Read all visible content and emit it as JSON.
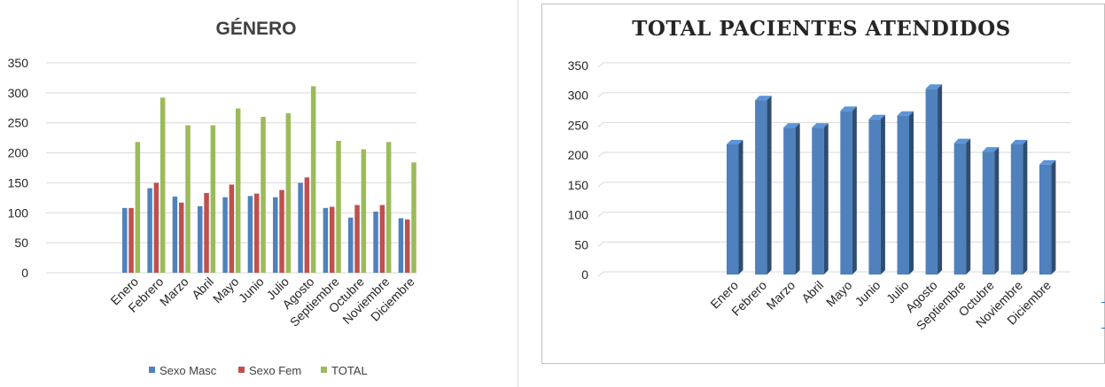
{
  "chart_data": [
    {
      "type": "bar",
      "title": "GÉNERO",
      "categories": [
        "Enero",
        "Febrero",
        "Marzo",
        "Abril",
        "Mayo",
        "Junio",
        "Julio",
        "Agosto",
        "Septiembre",
        "Octubre",
        "Noviembre",
        "Diciembre"
      ],
      "series": [
        {
          "name": "Sexo Masc",
          "color": "#4f81bd",
          "values": [
            108,
            141,
            127,
            111,
            126,
            128,
            126,
            150,
            108,
            92,
            102,
            91
          ]
        },
        {
          "name": "Sexo Fem",
          "color": "#c0504d",
          "values": [
            108,
            150,
            117,
            133,
            147,
            132,
            138,
            159,
            110,
            113,
            113,
            89
          ]
        },
        {
          "name": "TOTAL",
          "color": "#9bbb59",
          "values": [
            218,
            292,
            246,
            246,
            274,
            260,
            266,
            311,
            220,
            206,
            218,
            184
          ]
        }
      ],
      "ylim": [
        0,
        350
      ],
      "yticks": [
        0,
        50,
        100,
        150,
        200,
        250,
        300,
        350
      ],
      "grid": true,
      "legend": "bottom"
    },
    {
      "type": "bar",
      "title": "TOTAL PACIENTES ATENDIDOS",
      "categories": [
        "Enero",
        "Febrero",
        "Marzo",
        "Abril",
        "Mayo",
        "Junio",
        "Julio",
        "Agosto",
        "Septiembre",
        "Octubre",
        "Noviembre",
        "Diciembre"
      ],
      "series": [
        {
          "color": "#4f81bd",
          "values": [
            218,
            292,
            246,
            246,
            274,
            260,
            266,
            311,
            220,
            206,
            218,
            184
          ]
        }
      ],
      "ylim": [
        0,
        350
      ],
      "yticks": [
        0,
        50,
        100,
        150,
        200,
        250,
        300,
        350
      ],
      "grid": true,
      "legend": "none",
      "style": "3d-column"
    }
  ]
}
